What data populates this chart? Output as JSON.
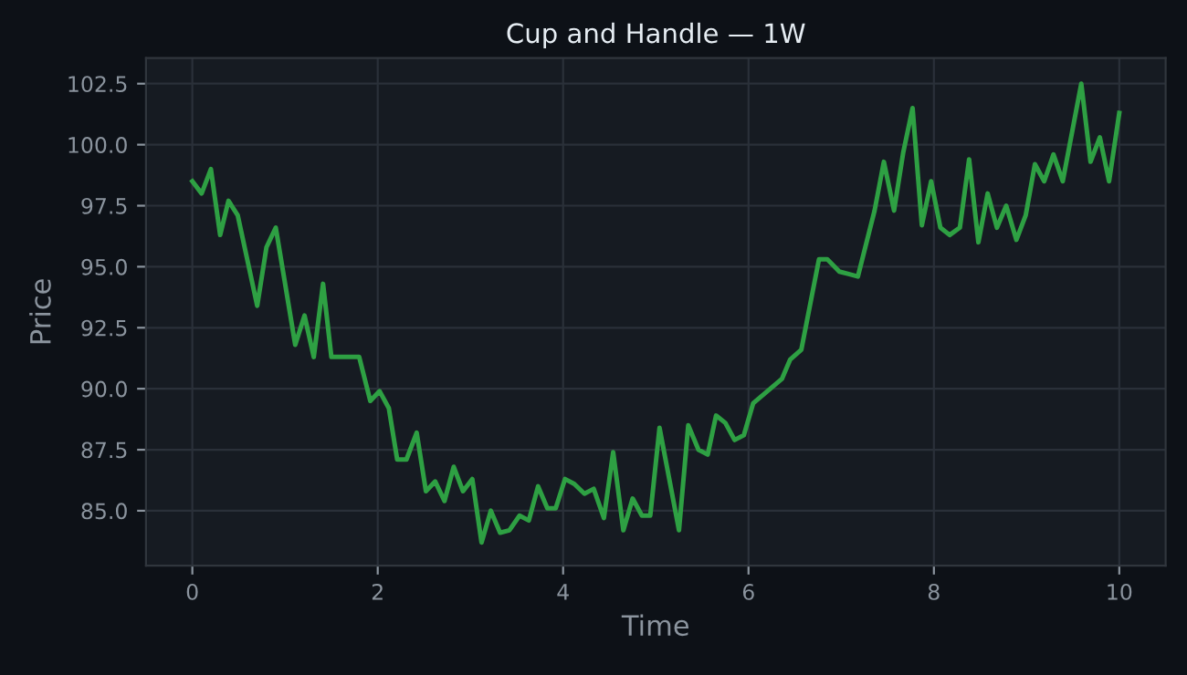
{
  "chart_data": {
    "type": "line",
    "title": "Cup and Handle — 1W",
    "xlabel": "Time",
    "ylabel": "Price",
    "x": [
      0.0,
      0.1,
      0.2,
      0.3,
      0.39,
      0.49,
      0.7,
      0.8,
      0.9,
      1.11,
      1.21,
      1.31,
      1.41,
      1.5,
      1.8,
      1.92,
      2.02,
      2.12,
      2.21,
      2.31,
      2.42,
      2.52,
      2.62,
      2.72,
      2.82,
      2.92,
      3.02,
      3.12,
      3.22,
      3.32,
      3.42,
      3.53,
      3.63,
      3.73,
      3.83,
      3.92,
      4.02,
      4.12,
      4.23,
      4.33,
      4.44,
      4.54,
      4.65,
      4.75,
      4.85,
      4.94,
      5.04,
      5.25,
      5.35,
      5.46,
      5.56,
      5.65,
      5.75,
      5.85,
      5.95,
      6.05,
      6.36,
      6.45,
      6.57,
      6.76,
      6.85,
      6.98,
      7.08,
      7.18,
      7.36,
      7.46,
      7.57,
      7.67,
      7.77,
      7.87,
      7.97,
      8.07,
      8.17,
      8.28,
      8.38,
      8.48,
      8.58,
      8.68,
      8.78,
      8.89,
      8.99,
      9.09,
      9.19,
      9.29,
      9.39,
      9.59,
      9.69,
      9.79,
      9.89,
      10.0
    ],
    "series": [
      {
        "color": "#2ea043",
        "values": [
          98.5,
          98.0,
          99.0,
          96.3,
          97.7,
          97.1,
          93.4,
          95.8,
          96.6,
          91.8,
          93.0,
          91.3,
          94.3,
          91.3,
          91.3,
          89.5,
          89.9,
          89.2,
          87.1,
          87.1,
          88.2,
          85.8,
          86.2,
          85.4,
          86.8,
          85.8,
          86.3,
          83.7,
          85.0,
          84.1,
          84.2,
          84.8,
          84.6,
          86.0,
          85.1,
          85.1,
          86.3,
          86.1,
          85.7,
          85.9,
          84.7,
          87.4,
          84.2,
          85.5,
          84.8,
          84.8,
          88.4,
          84.2,
          88.5,
          87.5,
          87.3,
          88.9,
          88.6,
          87.9,
          88.1,
          89.4,
          90.4,
          91.2,
          91.6,
          95.3,
          95.3,
          94.8,
          94.7,
          94.6,
          97.3,
          99.3,
          97.3,
          99.7,
          101.5,
          96.7,
          98.5,
          96.6,
          96.3,
          96.6,
          99.4,
          96.0,
          98.0,
          96.6,
          97.5,
          96.1,
          97.1,
          99.2,
          98.5,
          99.6,
          98.5,
          102.5,
          99.3,
          100.3,
          98.5,
          101.3
        ]
      }
    ],
    "xlim": [
      -0.5,
      10.5
    ],
    "ylim": [
      82.75,
      103.55
    ],
    "xticks": [
      0,
      2,
      4,
      6,
      8,
      10
    ],
    "yticks": [
      {
        "value": 85,
        "label": "85.0"
      },
      {
        "value": 87.5,
        "label": "87.5"
      },
      {
        "value": 90,
        "label": "90.0"
      },
      {
        "value": 92.5,
        "label": "92.5"
      },
      {
        "value": 95,
        "label": "95.0"
      },
      {
        "value": 97.5,
        "label": "97.5"
      },
      {
        "value": 100,
        "label": "100.0"
      },
      {
        "value": 102.5,
        "label": "102.5"
      }
    ],
    "grid": true,
    "marker": "none",
    "line_style": "solid"
  }
}
